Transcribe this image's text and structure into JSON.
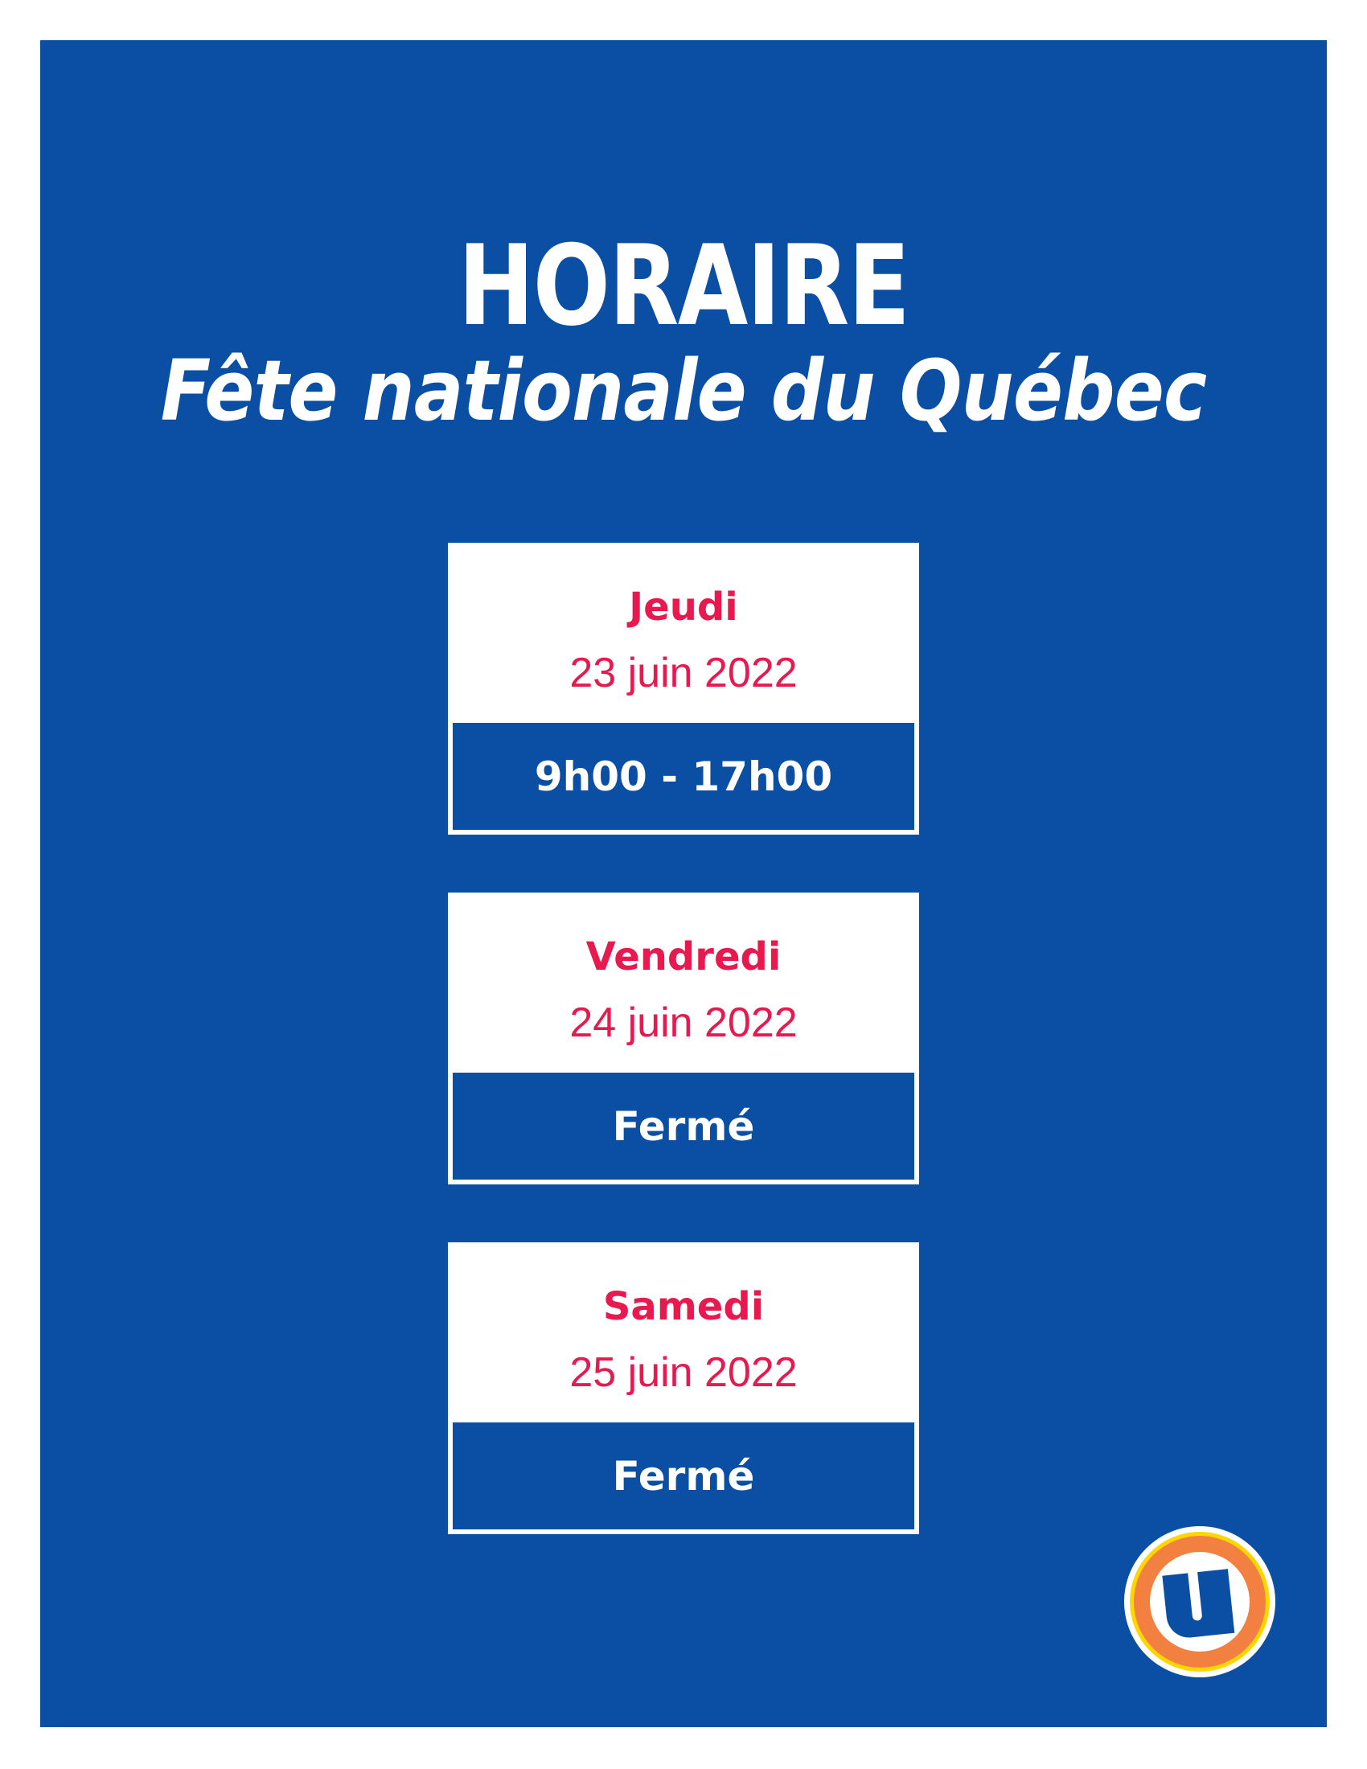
{
  "header": {
    "title": "HORAIRE",
    "subtitle": "Fête nationale du Québec"
  },
  "schedule": [
    {
      "day": "Jeudi",
      "date": "23 juin 2022",
      "hours": "9h00 - 17h00"
    },
    {
      "day": "Vendredi",
      "date": "24 juin 2022",
      "hours": "Fermé"
    },
    {
      "day": "Samedi",
      "date": "25 juin 2022",
      "hours": "Fermé"
    }
  ],
  "logo": {
    "icon": "uniprix-u-logo"
  },
  "colors": {
    "background": "#0a4fa3",
    "accent": "#e8194f",
    "logo_ring": "#f28040",
    "logo_outer": "#ffd700"
  }
}
